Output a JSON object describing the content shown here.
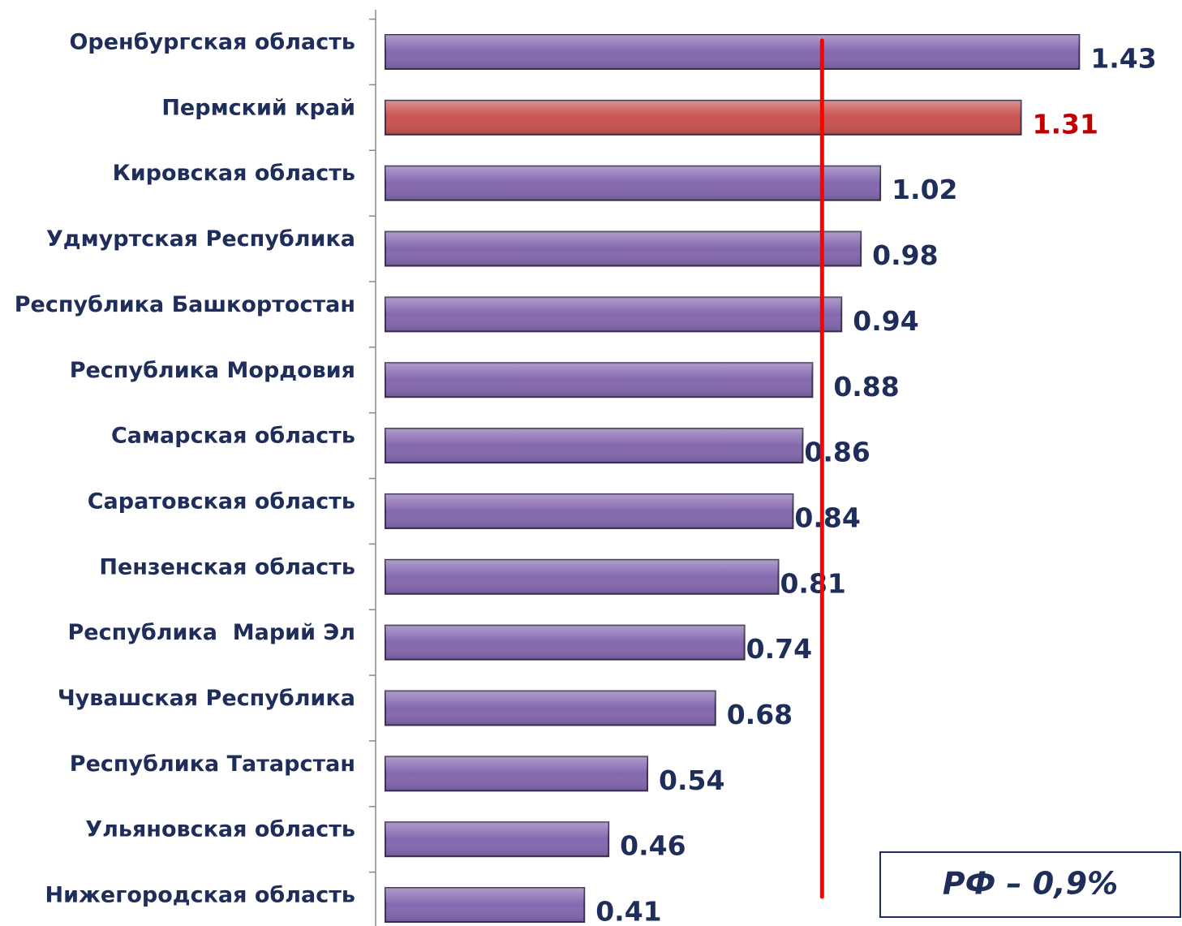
{
  "chart_data": {
    "type": "bar",
    "orientation": "horizontal",
    "categories": [
      "Оренбургская область",
      "Пермский край",
      "Кировская область",
      "Удмуртская Республика",
      "Республика Башкортостан",
      "Республика Мордовия",
      "Самарская область",
      "Саратовская область",
      "Пензенская область",
      "Республика  Марий Эл",
      "Чувашская Республика",
      "Республика Татарстан",
      "Ульяновская область",
      "Нижегородская область"
    ],
    "values": [
      1.43,
      1.31,
      1.02,
      0.98,
      0.94,
      0.88,
      0.86,
      0.84,
      0.81,
      0.74,
      0.68,
      0.54,
      0.46,
      0.41
    ],
    "colors": [
      "#8468b0",
      "#c9534f",
      "#8468b0",
      "#8468b0",
      "#8468b0",
      "#8468b0",
      "#8468b0",
      "#8468b0",
      "#8468b0",
      "#8468b0",
      "#8468b0",
      "#8468b0",
      "#8468b0",
      "#8468b0"
    ],
    "label_colors": [
      "#1f2d5a",
      "#c00000",
      "#1f2d5a",
      "#1f2d5a",
      "#1f2d5a",
      "#1f2d5a",
      "#1f2d5a",
      "#1f2d5a",
      "#1f2d5a",
      "#1f2d5a",
      "#1f2d5a",
      "#1f2d5a",
      "#1f2d5a",
      "#1f2d5a"
    ],
    "xlim": [
      0,
      1.6
    ],
    "reference_line": {
      "value": 0.9,
      "color": "#ff0000",
      "label": "РФ – 0,9%"
    }
  }
}
